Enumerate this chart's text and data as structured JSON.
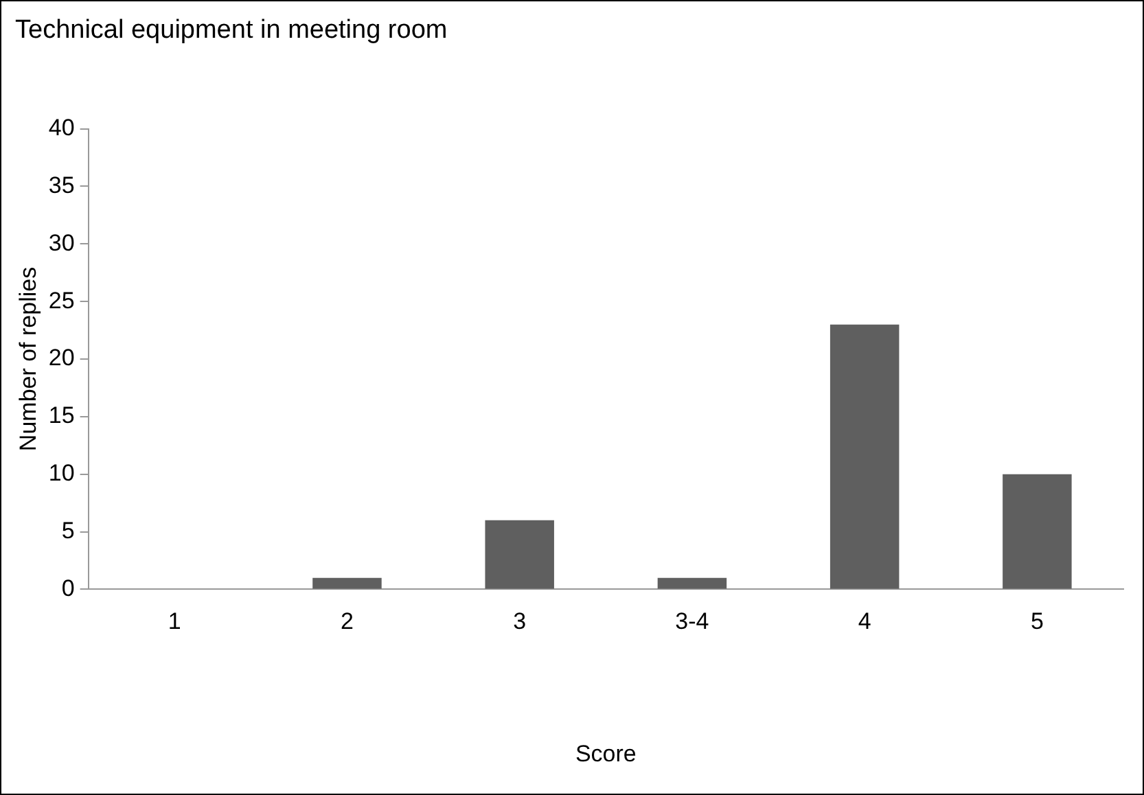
{
  "chart_data": {
    "type": "bar",
    "title": "Technical equipment in meeting room",
    "xlabel": "Score",
    "ylabel": "Number of replies",
    "categories": [
      "1",
      "2",
      "3",
      "3-4",
      "4",
      "5"
    ],
    "values": [
      0,
      1,
      6,
      1,
      23,
      10
    ],
    "color": "#5f5f5f",
    "ylim": [
      0,
      40
    ],
    "yticks": [
      0,
      5,
      10,
      15,
      20,
      25,
      30,
      35,
      40
    ],
    "grid": false,
    "legend": false
  }
}
